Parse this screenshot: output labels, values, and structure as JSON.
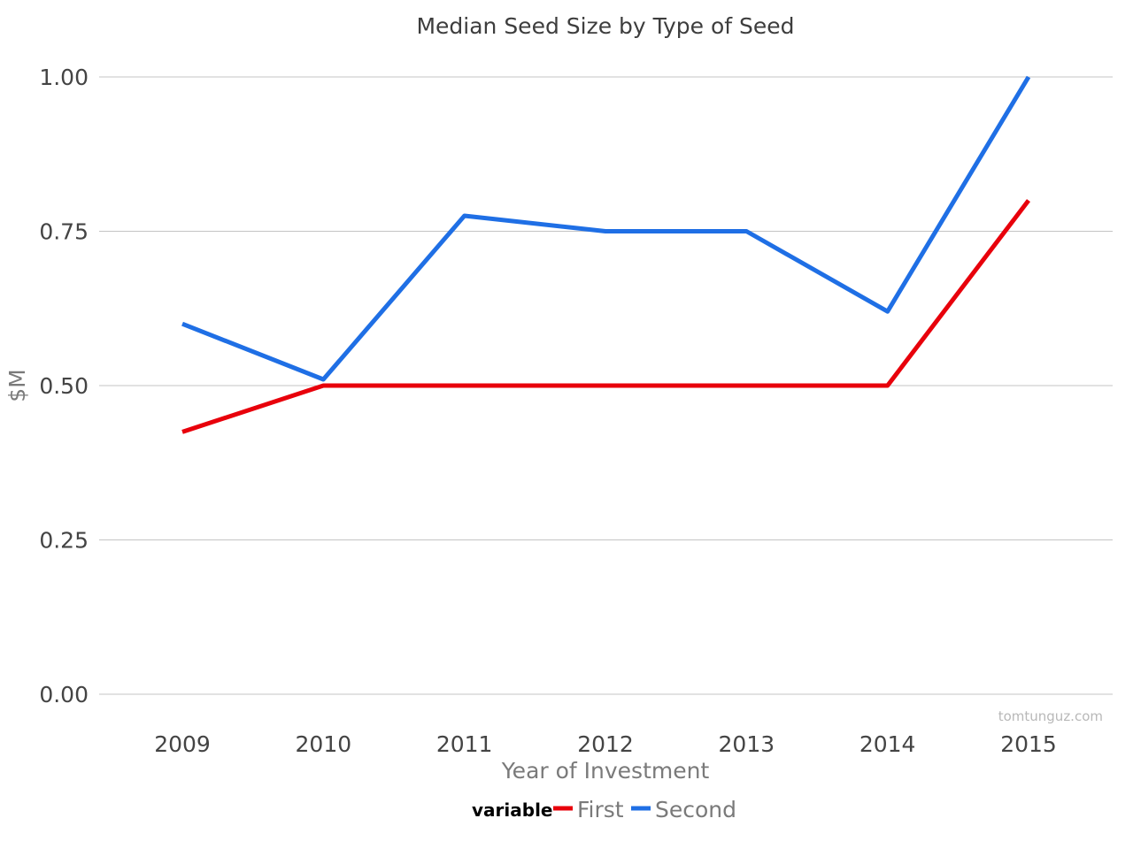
{
  "chart_data": {
    "type": "line",
    "title": "Median Seed Size by Type of Seed",
    "xlabel": "Year of Investment",
    "ylabel": "$M",
    "categories": [
      "2009",
      "2010",
      "2011",
      "2012",
      "2013",
      "2014",
      "2015"
    ],
    "yticks": [
      "0.00",
      "0.25",
      "0.50",
      "0.75",
      "1.00"
    ],
    "ylim": [
      0,
      1.0
    ],
    "grid": true,
    "legend": {
      "title": "variable",
      "placement": "bottom"
    },
    "series": [
      {
        "name": "First",
        "color": "#e8000b",
        "values": [
          0.425,
          0.5,
          0.5,
          0.5,
          0.5,
          0.5,
          0.8
        ]
      },
      {
        "name": "Second",
        "color": "#1f6fe5",
        "values": [
          0.6,
          0.51,
          0.775,
          0.75,
          0.75,
          0.62,
          1.0
        ]
      }
    ],
    "watermark": "tomtunguz.com"
  }
}
